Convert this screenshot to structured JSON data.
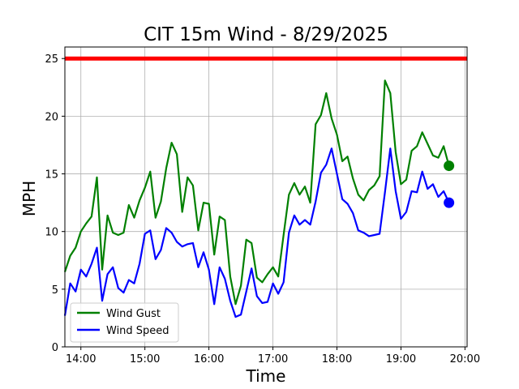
{
  "chart_data": {
    "type": "line",
    "title": "CIT 15m Wind - 8/29/2025",
    "xlabel": "Time",
    "ylabel": "MPH",
    "x_ticks": [
      "14:00",
      "15:00",
      "16:00",
      "17:00",
      "18:00",
      "19:00",
      "20:00"
    ],
    "y_ticks": [
      "0",
      "5",
      "10",
      "15",
      "20",
      "25"
    ],
    "xlim": [
      "13:45",
      "20:02"
    ],
    "ylim": [
      0,
      26
    ],
    "grid": true,
    "legend_position": "lower-left",
    "threshold": {
      "value": 25,
      "color": "#ff0000"
    },
    "x": [
      "13:45",
      "13:50",
      "13:55",
      "14:00",
      "14:05",
      "14:10",
      "14:15",
      "14:20",
      "14:25",
      "14:30",
      "14:35",
      "14:40",
      "14:45",
      "14:50",
      "14:55",
      "15:00",
      "15:05",
      "15:10",
      "15:15",
      "15:20",
      "15:25",
      "15:30",
      "15:35",
      "15:40",
      "15:45",
      "15:50",
      "15:55",
      "16:00",
      "16:05",
      "16:10",
      "16:15",
      "16:20",
      "16:25",
      "16:30",
      "16:35",
      "16:40",
      "16:45",
      "16:50",
      "16:55",
      "17:00",
      "17:05",
      "17:10",
      "17:15",
      "17:20",
      "17:25",
      "17:30",
      "17:35",
      "17:40",
      "17:45",
      "17:50",
      "17:55",
      "18:00",
      "18:05",
      "18:10",
      "18:15",
      "18:20",
      "18:25",
      "18:30",
      "18:35",
      "18:40",
      "18:45",
      "18:50",
      "18:55",
      "19:00",
      "19:05",
      "19:10",
      "19:15",
      "19:20",
      "19:25",
      "19:30",
      "19:35",
      "19:40",
      "19:45"
    ],
    "series": [
      {
        "name": "Wind Gust",
        "color": "#008000",
        "values": [
          6.5,
          7.9,
          8.6,
          10.0,
          10.7,
          11.3,
          14.7,
          6.7,
          11.4,
          9.9,
          9.7,
          9.9,
          12.3,
          11.2,
          12.7,
          13.8,
          15.2,
          11.2,
          12.6,
          15.5,
          17.7,
          16.7,
          11.7,
          14.7,
          14.0,
          10.1,
          12.5,
          12.4,
          8.0,
          11.3,
          11.0,
          6.1,
          3.7,
          5.3,
          9.3,
          9.0,
          6.0,
          5.6,
          6.3,
          6.9,
          6.1,
          9.7,
          13.2,
          14.2,
          13.2,
          13.9,
          12.5,
          19.3,
          20.1,
          22.0,
          19.8,
          18.4,
          16.1,
          16.5,
          14.6,
          13.2,
          12.7,
          13.6,
          14.0,
          14.8,
          23.1,
          22.0,
          16.9,
          14.1,
          14.5,
          17.0,
          17.4,
          18.6,
          17.6,
          16.6,
          16.4,
          17.4,
          15.7
        ]
      },
      {
        "name": "Wind Speed",
        "color": "#0000ff",
        "values": [
          2.7,
          5.5,
          4.8,
          6.7,
          6.1,
          7.2,
          8.6,
          4.0,
          6.3,
          6.9,
          5.1,
          4.7,
          5.8,
          5.5,
          7.2,
          9.8,
          10.1,
          7.6,
          8.4,
          10.3,
          9.9,
          9.1,
          8.7,
          8.9,
          9.0,
          6.9,
          8.2,
          6.7,
          3.7,
          6.9,
          5.9,
          4.0,
          2.6,
          2.8,
          4.8,
          6.8,
          4.4,
          3.8,
          3.9,
          5.5,
          4.6,
          5.6,
          9.9,
          11.4,
          10.6,
          11.0,
          10.6,
          12.6,
          15.1,
          15.8,
          17.2,
          15.0,
          12.8,
          12.4,
          11.6,
          10.1,
          9.9,
          9.6,
          9.7,
          9.8,
          13.4,
          17.2,
          13.5,
          11.1,
          11.7,
          13.5,
          13.4,
          15.2,
          13.7,
          14.1,
          13.0,
          13.5,
          12.5
        ]
      }
    ]
  }
}
